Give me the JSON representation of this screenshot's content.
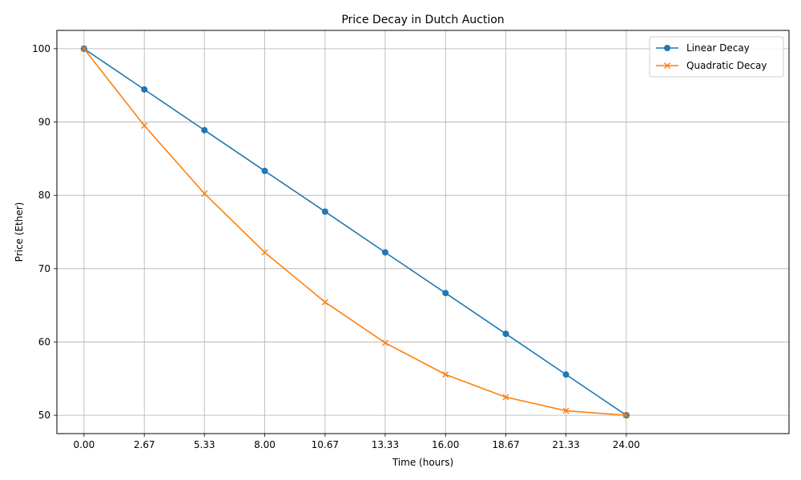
{
  "chart_data": {
    "type": "line",
    "title": "Price Decay in Dutch Auction",
    "xlabel": "Time (hours)",
    "ylabel": "Price (Ether)",
    "x": [
      0,
      2.67,
      5.33,
      8.0,
      10.67,
      13.33,
      16.0,
      18.67,
      21.33,
      24.0
    ],
    "x_tick_labels": [
      "0.00",
      "2.67",
      "5.33",
      "8.00",
      "10.67",
      "13.33",
      "16.00",
      "18.67",
      "21.33",
      "24.00"
    ],
    "y_ticks": [
      50,
      60,
      70,
      80,
      90,
      100
    ],
    "xlim": [
      -1.2,
      31.2
    ],
    "ylim": [
      47.5,
      102.5
    ],
    "grid": true,
    "legend_position": "top-right",
    "series": [
      {
        "name": "Linear Decay",
        "color": "#1f77b4",
        "marker": "circle",
        "values": [
          100,
          94.44,
          88.89,
          83.33,
          77.78,
          72.22,
          66.67,
          61.11,
          55.56,
          50
        ]
      },
      {
        "name": "Quadratic Decay",
        "color": "#ff7f0e",
        "marker": "x",
        "values": [
          100,
          89.51,
          80.25,
          72.22,
          65.43,
          59.88,
          55.56,
          52.47,
          50.62,
          50
        ]
      }
    ]
  }
}
